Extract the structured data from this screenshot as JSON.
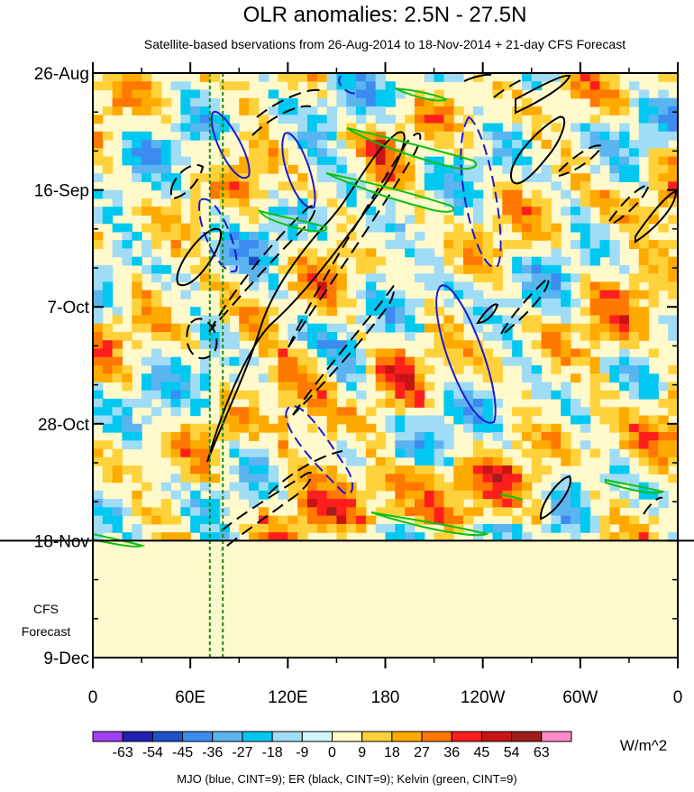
{
  "chart_data": {
    "type": "heatmap",
    "title": "OLR anomalies: 2.5N - 27.5N",
    "subtitle": "Satellite-based bservations from 26-Aug-2014 to 18-Nov-2014 + 21-day CFS Forecast",
    "x_ticks": [
      "0",
      "60E",
      "120E",
      "180",
      "120W",
      "60W",
      "0"
    ],
    "x_tick_values": [
      0,
      60,
      120,
      180,
      240,
      300,
      360
    ],
    "x_range": [
      0,
      360
    ],
    "y_ticks": [
      "26-Aug",
      "16-Sep",
      "7-Oct",
      "28-Oct",
      "18-Nov",
      "9-Dec"
    ],
    "y_tick_values": [
      0,
      21,
      42,
      63,
      84,
      105
    ],
    "y_range": [
      0,
      105
    ],
    "forecast_label": [
      "CFS",
      "Forecast"
    ],
    "forecast_start_day": 84,
    "observation_end": "18-Nov",
    "colorbar": {
      "labels": [
        "-63",
        "-54",
        "-45",
        "-36",
        "-27",
        "-18",
        "-9",
        "0",
        "9",
        "18",
        "27",
        "36",
        "45",
        "54",
        "63"
      ],
      "colors": [
        "#a040f0",
        "#2020b0",
        "#1e50c8",
        "#3c8cf0",
        "#5ab4f0",
        "#00c8f0",
        "#a0dcf5",
        "#d2f5fa",
        "#fffac8",
        "#ffd23c",
        "#ffaa00",
        "#ff7800",
        "#ff1e1e",
        "#c81414",
        "#a01e1e",
        "#ff8cc8"
      ],
      "unit": "W/m^2"
    },
    "footer": "MJO (blue, CINT=9); ER (black, CINT=9); Kelvin (green, CINT=9)",
    "index_longitudes": [
      72,
      80
    ],
    "contours": {
      "mjo_color": "#1a1ad0",
      "er_color": "#000000",
      "kelvin_color": "#10c010"
    },
    "colors": {
      "forecast_fill": "#fffacd",
      "base_fill": "#fff9cc",
      "index_line": "#1a8a1a"
    }
  }
}
